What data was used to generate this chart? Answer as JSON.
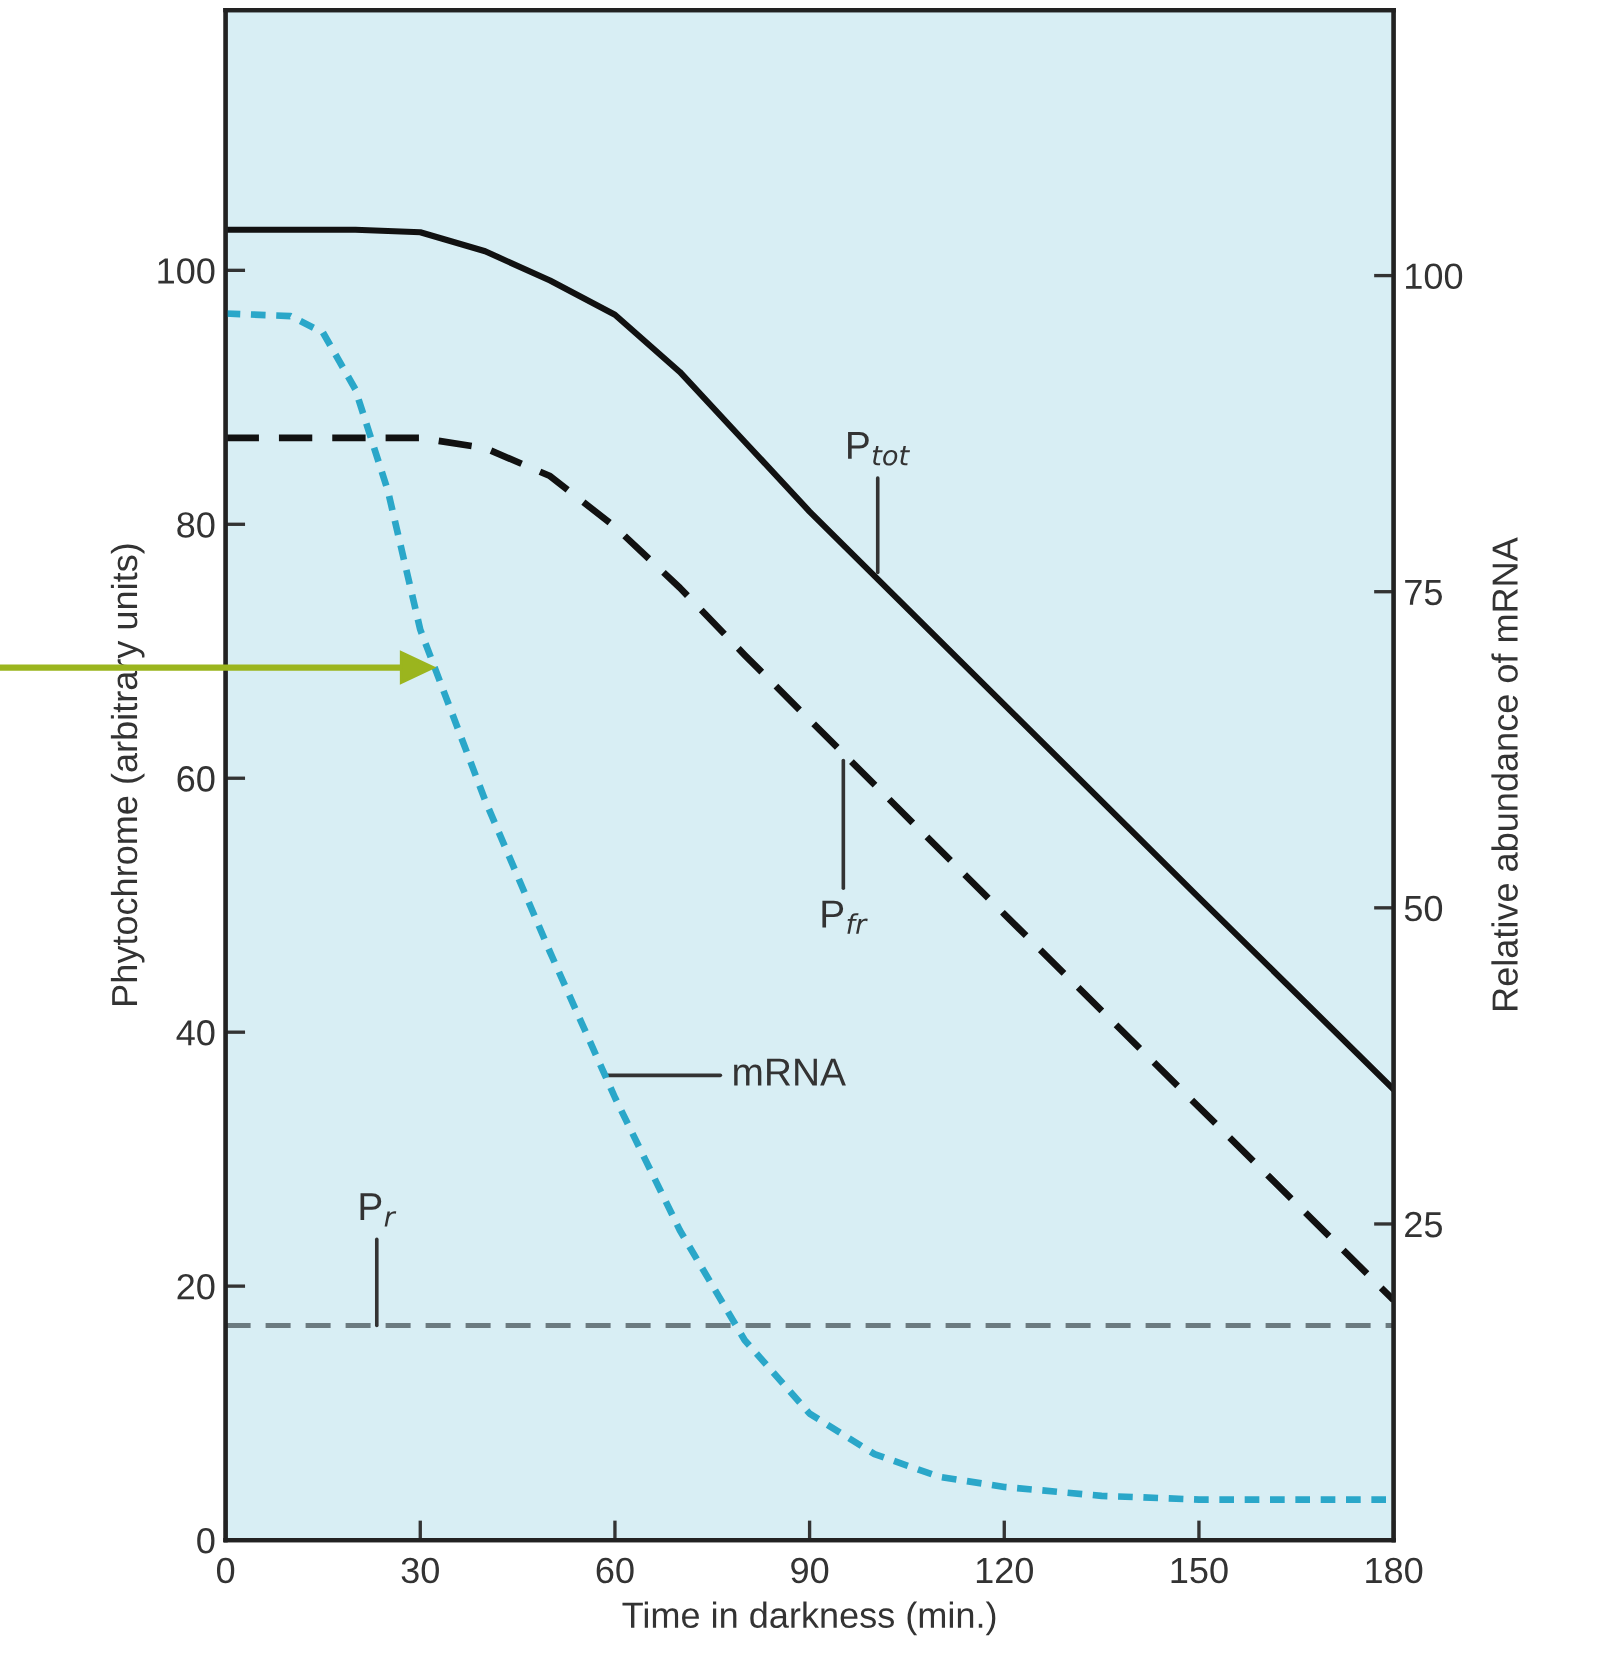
{
  "chart_data": {
    "type": "line",
    "xlabel": "Time in darkness (min.)",
    "ylabel": "Phytochrome (arbitrary units)",
    "y2label": "Relative abundance of mRNA",
    "xlim": [
      0,
      180
    ],
    "xticks": [
      0,
      30,
      60,
      90,
      120,
      150,
      180
    ],
    "ylim": [
      0,
      120.5
    ],
    "yticks": [
      0,
      20,
      40,
      60,
      80,
      100
    ],
    "y2lim": [
      0,
      121
    ],
    "y2ticks": [
      25,
      50,
      75,
      100
    ],
    "grid": false,
    "legend": false,
    "series": [
      {
        "color": "#111111",
        "line_style": "solid",
        "x": [
          0,
          20,
          30,
          40,
          50,
          60,
          70,
          80,
          90,
          120,
          150,
          180
        ],
        "values": [
          103.2,
          103.2,
          103,
          101.5,
          99.2,
          96.5,
          92,
          86.5,
          81,
          65.8,
          50.6,
          35.5
        ]
      },
      {
        "color": "#111111",
        "line_style": "dashed",
        "x": [
          0,
          30,
          40,
          50,
          60,
          70,
          80,
          90,
          120,
          150,
          180
        ],
        "values": [
          86.8,
          86.8,
          86,
          83.8,
          79.8,
          75,
          69.7,
          64.6,
          49.3,
          34.1,
          18.9
        ]
      },
      {
        "color": "#6b7b80",
        "line_style": "dashed",
        "x": [
          0,
          180
        ],
        "values": [
          16.9,
          16.9
        ]
      },
      {
        "color": "#2aa7c9",
        "line_style": "dotted",
        "axis": "y2",
        "x": [
          0,
          10,
          15,
          20,
          25,
          30,
          40,
          50,
          60,
          70,
          80,
          90,
          100,
          110,
          120,
          135,
          150,
          180
        ],
        "values": [
          97,
          96.8,
          95.5,
          91,
          83,
          72,
          58.5,
          46.5,
          35,
          24.5,
          15.8,
          10,
          6.8,
          5,
          4.2,
          3.5,
          3.2,
          3.2
        ]
      }
    ],
    "annotations": [
      {
        "text": "P$_{tot}$",
        "x": 100.5,
        "y": 76.2
      },
      {
        "text": "P$_{fr}$",
        "x": 95.2,
        "y": 61.4
      },
      {
        "text": "P$_{r}$",
        "x": 23.3,
        "y": 16.9
      },
      {
        "text": "mRNA",
        "x": 58.7,
        "y": 36.6
      }
    ]
  }
}
